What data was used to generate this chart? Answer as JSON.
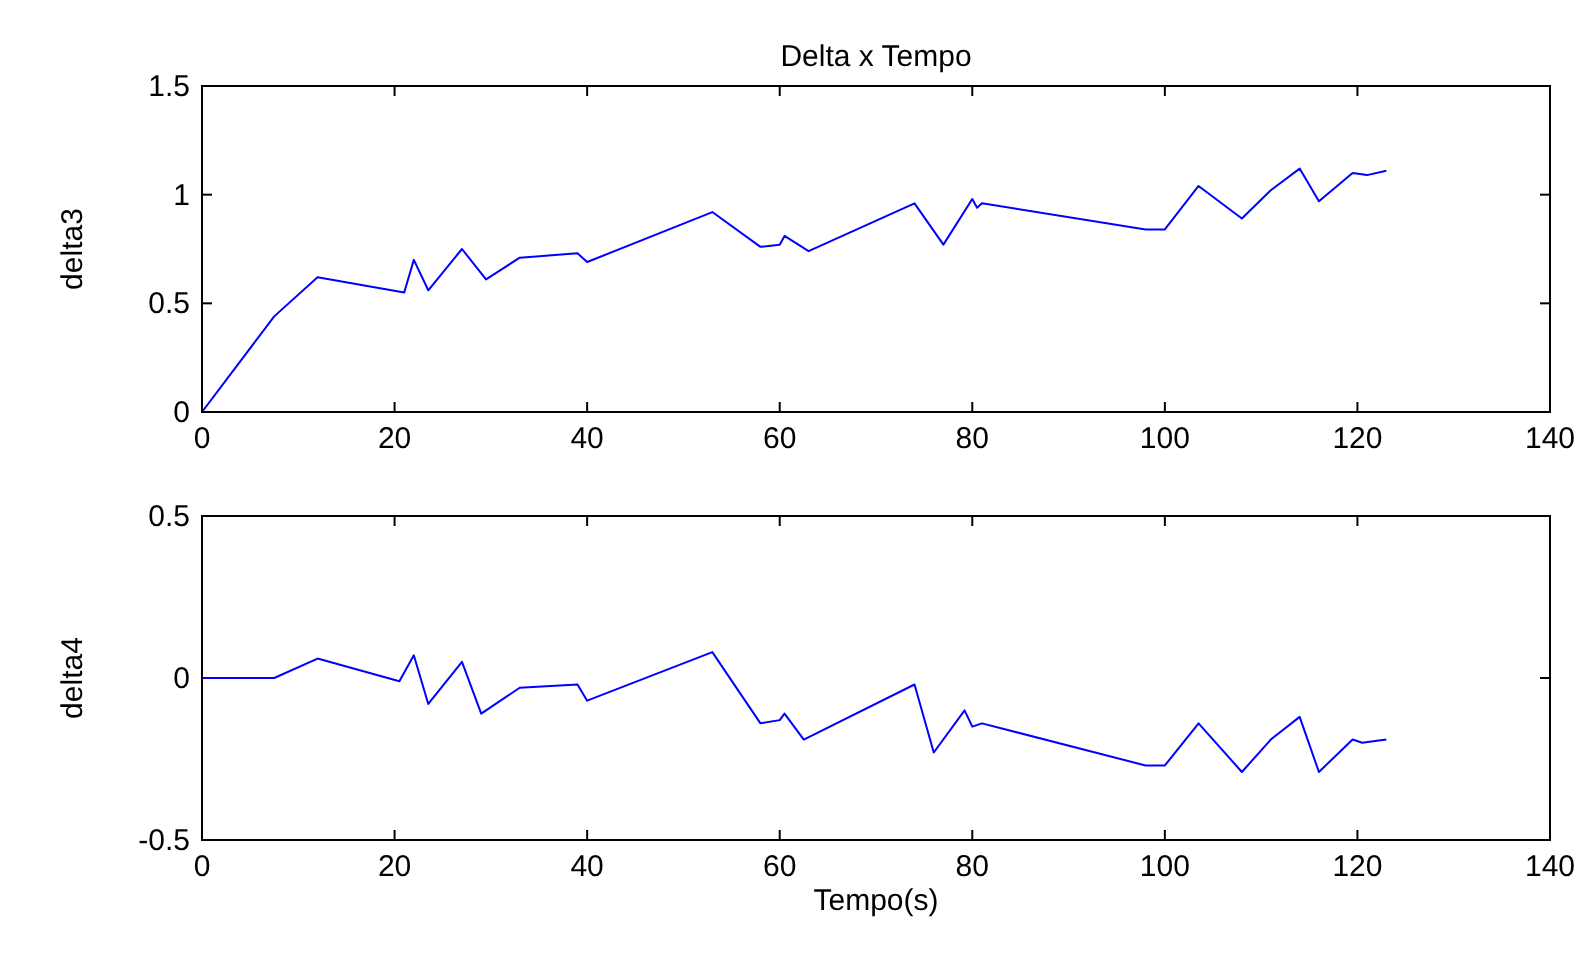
{
  "chart_data": [
    {
      "type": "line",
      "title": "Delta x Tempo",
      "ylabel": "delta3",
      "xlim": [
        0,
        140
      ],
      "xticks": [
        0,
        20,
        40,
        60,
        80,
        100,
        120,
        140
      ],
      "ylim": [
        0,
        1.5
      ],
      "yticks": [
        0,
        0.5,
        1,
        1.5
      ],
      "series": [
        {
          "color": "#0000ff",
          "x": [
            0,
            7.5,
            12,
            21,
            22,
            23.5,
            27,
            29.5,
            33,
            39,
            40,
            53,
            58,
            60,
            60.5,
            63,
            74,
            77,
            80,
            80.5,
            81,
            98,
            100,
            103.5,
            108,
            111,
            114,
            116,
            119.5,
            121,
            123
          ],
          "values": [
            0,
            0.44,
            0.62,
            0.55,
            0.7,
            0.56,
            0.75,
            0.61,
            0.71,
            0.73,
            0.69,
            0.92,
            0.76,
            0.77,
            0.81,
            0.74,
            0.96,
            0.77,
            0.98,
            0.94,
            0.96,
            0.84,
            0.84,
            1.04,
            0.89,
            1.02,
            1.12,
            0.97,
            1.1,
            1.09,
            1.11
          ]
        }
      ]
    },
    {
      "type": "line",
      "xlabel": "Tempo(s)",
      "ylabel": "delta4",
      "xlim": [
        0,
        140
      ],
      "xticks": [
        0,
        20,
        40,
        60,
        80,
        100,
        120,
        140
      ],
      "ylim": [
        -0.5,
        0.5
      ],
      "yticks": [
        -0.5,
        0,
        0.5
      ],
      "series": [
        {
          "color": "#0000ff",
          "x": [
            0,
            7.5,
            12,
            20.5,
            22,
            23.5,
            27,
            29,
            33,
            39,
            40,
            53,
            58,
            60,
            60.5,
            62.5,
            74,
            76,
            79.2,
            80,
            81,
            98,
            100,
            103.5,
            108,
            111,
            114,
            116,
            119.5,
            120.5,
            123
          ],
          "values": [
            0,
            0,
            0.06,
            -0.01,
            0.07,
            -0.08,
            0.05,
            -0.11,
            -0.03,
            -0.02,
            -0.07,
            0.08,
            -0.14,
            -0.13,
            -0.11,
            -0.19,
            -0.02,
            -0.23,
            -0.1,
            -0.15,
            -0.14,
            -0.27,
            -0.27,
            -0.14,
            -0.29,
            -0.19,
            -0.12,
            -0.29,
            -0.19,
            -0.2,
            -0.19
          ]
        }
      ]
    }
  ]
}
